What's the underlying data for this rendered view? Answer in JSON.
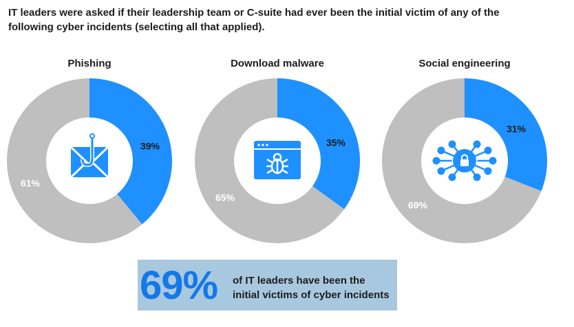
{
  "heading": {
    "line1": "IT leaders were asked if their leadership team or C-suite had ever been the initial victim of any of the",
    "line2": "following cyber incidents (selecting all that applied)."
  },
  "colors": {
    "accent": "#1e90ff",
    "rest": "#bfbfbf",
    "callout_bg": "#a8c8df",
    "callout_num": "#1478e8"
  },
  "chart_data": [
    {
      "type": "pie",
      "title": "Phishing",
      "icon": "phishing-envelope-icon",
      "categories": [
        "",
        ""
      ],
      "values": [
        39,
        61
      ],
      "labels": [
        "39%",
        "61%"
      ]
    },
    {
      "type": "pie",
      "title": "Download malware",
      "icon": "malware-window-icon",
      "categories": [
        "",
        ""
      ],
      "values": [
        35,
        65
      ],
      "labels": [
        "35%",
        "65%"
      ]
    },
    {
      "type": "pie",
      "title": "Social engineering",
      "icon": "network-lock-icon",
      "categories": [
        "",
        ""
      ],
      "values": [
        31,
        69
      ],
      "labels": [
        "31%",
        "69%"
      ]
    }
  ],
  "callout": {
    "number": "69%",
    "line1": "of IT leaders have been the",
    "line2": "initial victims of cyber incidents"
  }
}
